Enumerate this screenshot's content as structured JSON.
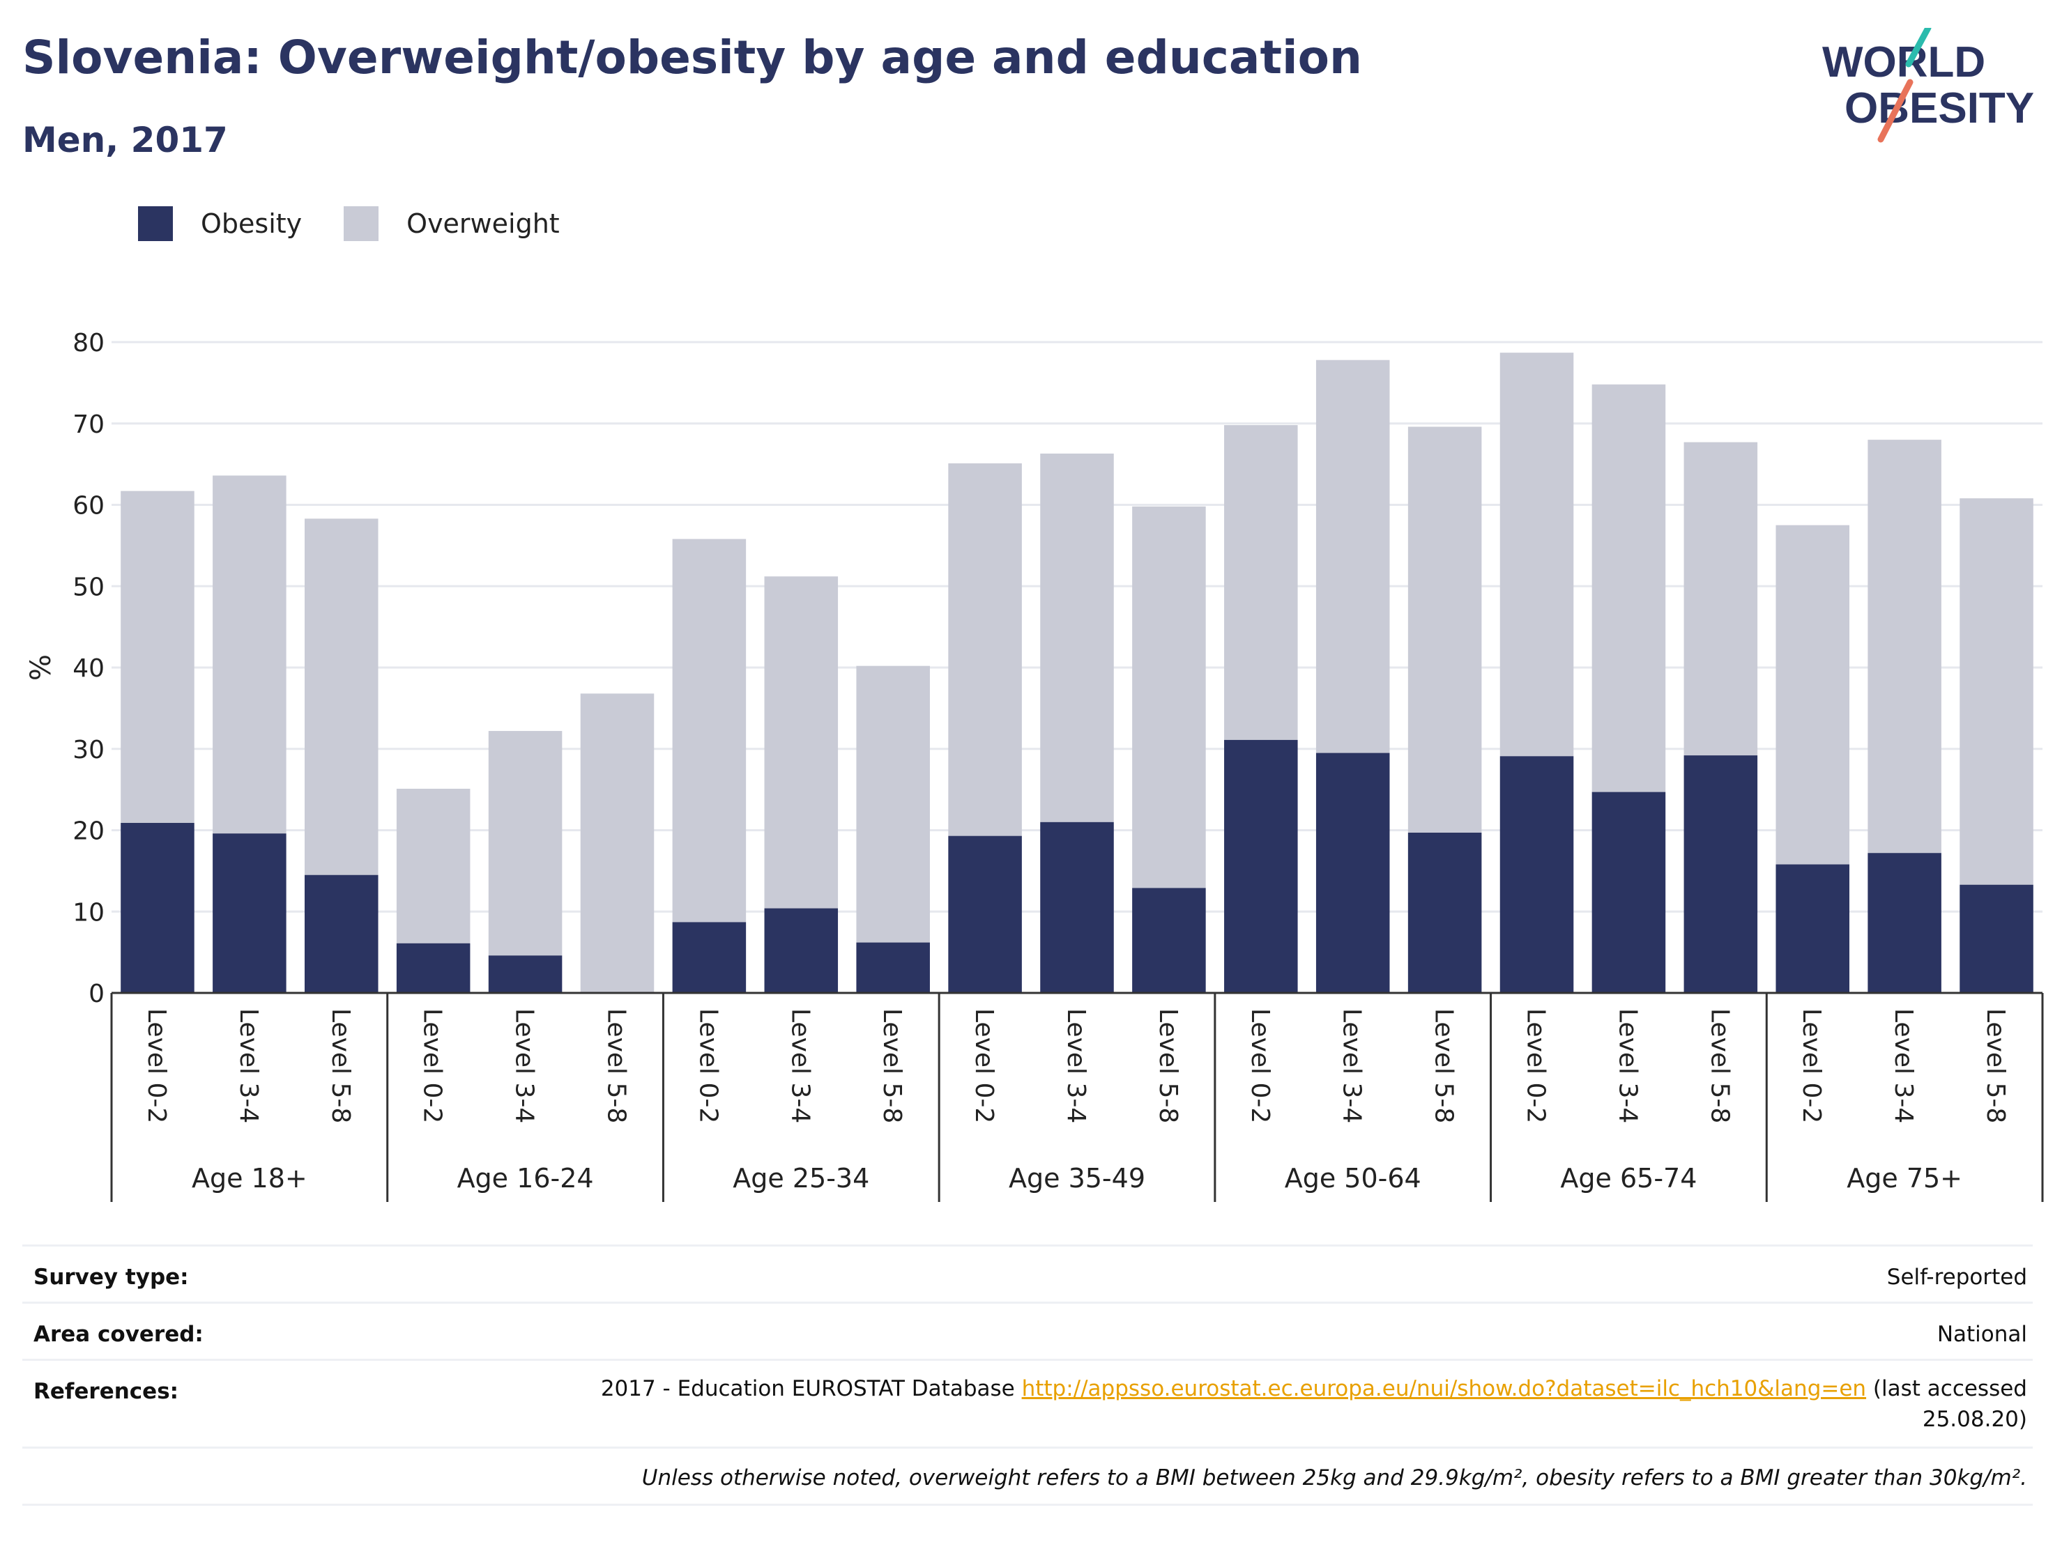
{
  "header": {
    "title": "Slovenia: Overweight/obesity by age and education",
    "subtitle": "Men, 2017",
    "logo_line1": "WORLD",
    "logo_line2": "OBESITY"
  },
  "colors": {
    "obesity": "#2b3461",
    "overweight": "#c9cbd6",
    "title": "#2b3461",
    "link": "#e8a000",
    "logo_teal": "#2bbbad",
    "logo_coral": "#e8735a"
  },
  "legend": [
    {
      "label": "Obesity",
      "color": "#2b3461"
    },
    {
      "label": "Overweight",
      "color": "#c9cbd6"
    }
  ],
  "chart_data": {
    "type": "bar",
    "stacked": true,
    "ylabel": "%",
    "ylim": [
      0,
      80
    ],
    "yticks": [
      0,
      10,
      20,
      30,
      40,
      50,
      60,
      70,
      80
    ],
    "grid": true,
    "legend_position": "top-left",
    "groups": [
      "Age 18+",
      "Age 16-24",
      "Age 25-34",
      "Age 35-49",
      "Age 50-64",
      "Age 65-74",
      "Age 75+"
    ],
    "subcategories": [
      "Level 0-2",
      "Level 3-4",
      "Level 5-8"
    ],
    "series": [
      {
        "name": "Obesity",
        "values": [
          [
            20.9,
            19.6,
            14.5
          ],
          [
            6.1,
            4.6,
            0
          ],
          [
            8.7,
            10.4,
            6.2
          ],
          [
            19.3,
            21.0,
            12.9
          ],
          [
            31.1,
            29.5,
            19.7
          ],
          [
            29.1,
            24.7,
            29.2
          ],
          [
            15.8,
            17.2,
            13.3
          ]
        ]
      },
      {
        "name": "Overweight",
        "values": [
          [
            40.8,
            44.0,
            43.8
          ],
          [
            19.0,
            27.6,
            36.8
          ],
          [
            47.1,
            40.8,
            34.0
          ],
          [
            45.8,
            45.3,
            46.9
          ],
          [
            38.7,
            48.3,
            49.9
          ],
          [
            49.6,
            50.1,
            38.5
          ],
          [
            41.7,
            50.8,
            47.5
          ]
        ]
      }
    ]
  },
  "info": {
    "survey_type_label": "Survey type:",
    "survey_type_value": "Self-reported",
    "area_label": "Area covered:",
    "area_value": "National",
    "references_label": "References:",
    "references_prefix": "2017 - Education EUROSTAT Database ",
    "references_link": "http://appsso.eurostat.ec.europa.eu/nui/show.do?dataset=ilc_hch10&lang=en",
    "references_suffix_1": " (last accessed",
    "references_suffix_2": "25.08.20)",
    "note": "Unless otherwise noted, overweight refers to a BMI between 25kg and 29.9kg/m², obesity refers to a BMI greater than 30kg/m²."
  }
}
